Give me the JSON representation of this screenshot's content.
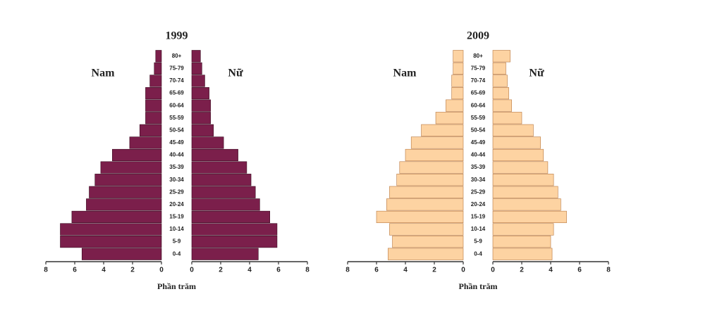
{
  "chart_data": [
    {
      "type": "pyramid",
      "title": "1999",
      "xlabel": "Phần trăm",
      "edgecolor": "#3a0a20",
      "categories": [
        "0-4",
        "5-9",
        "10-14",
        "15-19",
        "20-24",
        "25-29",
        "30-34",
        "35-39",
        "40-44",
        "45-49",
        "50-54",
        "55-59",
        "60-64",
        "65-69",
        "70-74",
        "75-79",
        "80+"
      ],
      "series": [
        {
          "name": "Nam",
          "color": "#7b1f4b",
          "values": [
            5.5,
            7.0,
            7.0,
            6.2,
            5.2,
            5.0,
            4.6,
            4.2,
            3.4,
            2.2,
            1.5,
            1.1,
            1.1,
            1.1,
            0.8,
            0.5,
            0.4
          ]
        },
        {
          "name": "Nữ",
          "color": "#7b1f4b",
          "values": [
            4.6,
            5.9,
            5.9,
            5.4,
            4.7,
            4.4,
            4.1,
            3.8,
            3.2,
            2.2,
            1.5,
            1.3,
            1.3,
            1.2,
            0.9,
            0.7,
            0.6
          ]
        }
      ],
      "xlim": [
        0,
        8
      ],
      "xticks": [
        0,
        2,
        4,
        6,
        8
      ]
    },
    {
      "type": "pyramid",
      "title": "2009",
      "xlabel": "Phần trăm",
      "edgecolor": "#b7773f",
      "categories": [
        "0-4",
        "5-9",
        "10-14",
        "15-19",
        "20-24",
        "25-29",
        "30-34",
        "35-39",
        "40-44",
        "45-49",
        "50-54",
        "55-59",
        "60-64",
        "65-69",
        "70-74",
        "75-79",
        "80+"
      ],
      "series": [
        {
          "name": "Nam",
          "color": "#fdd3a2",
          "values": [
            5.2,
            4.9,
            5.1,
            6.0,
            5.3,
            5.1,
            4.6,
            4.4,
            4.0,
            3.6,
            2.9,
            1.9,
            1.2,
            0.8,
            0.8,
            0.7,
            0.7
          ]
        },
        {
          "name": "Nữ",
          "color": "#fdd3a2",
          "values": [
            4.1,
            4.0,
            4.2,
            5.1,
            4.7,
            4.5,
            4.2,
            3.8,
            3.5,
            3.3,
            2.8,
            2.0,
            1.3,
            1.1,
            1.0,
            0.9,
            1.2
          ]
        }
      ],
      "xlim": [
        0,
        8
      ],
      "xticks": [
        0,
        2,
        4,
        6,
        8
      ]
    }
  ]
}
